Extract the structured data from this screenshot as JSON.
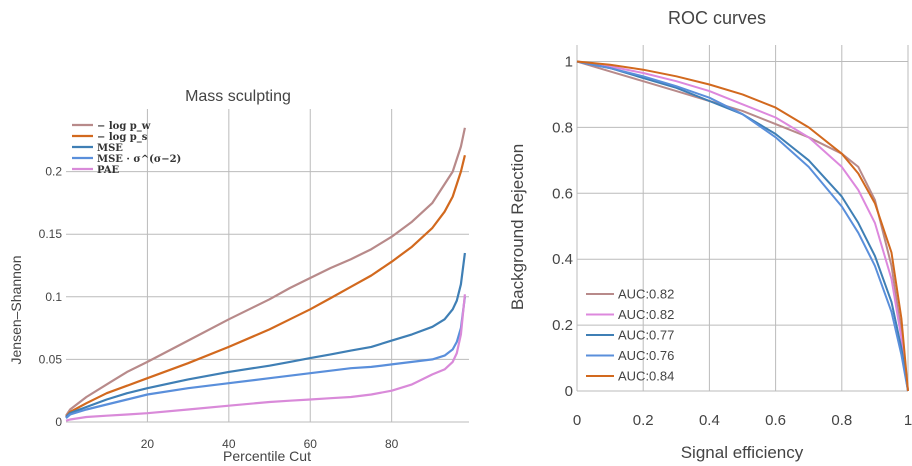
{
  "chart_data": [
    {
      "type": "line",
      "title": "Mass sculpting",
      "xlabel": "Percentile Cut",
      "ylabel": "Jensen–Shannon",
      "xlim": [
        0,
        99
      ],
      "ylim": [
        0,
        0.25
      ],
      "xticks": [
        20,
        40,
        60,
        80
      ],
      "xtick_labels": [
        "20",
        "40",
        "60",
        "80"
      ],
      "yticks": [
        0,
        0.05,
        0.1,
        0.15,
        0.2
      ],
      "ytick_labels": [
        "0",
        "0.05",
        "0.1",
        "0.15",
        "0.2"
      ],
      "grid": true,
      "legend_position": "top-left",
      "series": [
        {
          "name": "− log p_w",
          "color": "#b88a8a",
          "x": [
            0,
            1,
            5,
            10,
            15,
            20,
            30,
            40,
            50,
            55,
            60,
            65,
            70,
            75,
            80,
            85,
            90,
            93,
            95,
            97,
            98
          ],
          "y": [
            0.005,
            0.01,
            0.02,
            0.03,
            0.04,
            0.048,
            0.065,
            0.082,
            0.098,
            0.107,
            0.115,
            0.123,
            0.13,
            0.138,
            0.148,
            0.16,
            0.175,
            0.19,
            0.2,
            0.22,
            0.235
          ]
        },
        {
          "name": "− log p_s",
          "color": "#d2691e",
          "x": [
            0,
            1,
            5,
            10,
            15,
            20,
            30,
            40,
            50,
            55,
            60,
            65,
            70,
            75,
            80,
            85,
            90,
            93,
            95,
            97,
            98
          ],
          "y": [
            0.004,
            0.008,
            0.015,
            0.023,
            0.029,
            0.035,
            0.047,
            0.06,
            0.074,
            0.082,
            0.09,
            0.099,
            0.108,
            0.117,
            0.128,
            0.14,
            0.155,
            0.168,
            0.18,
            0.2,
            0.213
          ]
        },
        {
          "name": "MSE",
          "color": "#3f7fb5",
          "x": [
            0,
            1,
            5,
            10,
            15,
            20,
            30,
            40,
            50,
            55,
            60,
            65,
            70,
            75,
            80,
            85,
            90,
            93,
            95,
            96,
            97,
            98
          ],
          "y": [
            0.004,
            0.007,
            0.012,
            0.018,
            0.023,
            0.027,
            0.034,
            0.04,
            0.045,
            0.048,
            0.051,
            0.054,
            0.057,
            0.06,
            0.065,
            0.07,
            0.076,
            0.082,
            0.09,
            0.097,
            0.11,
            0.135
          ]
        },
        {
          "name": "MSE · σ^(σ−2)",
          "color": "#5a8fdb",
          "x": [
            0,
            1,
            5,
            10,
            15,
            20,
            30,
            40,
            50,
            55,
            60,
            65,
            70,
            75,
            80,
            85,
            90,
            93,
            95,
            96,
            97,
            98
          ],
          "y": [
            0.003,
            0.006,
            0.01,
            0.014,
            0.018,
            0.022,
            0.027,
            0.031,
            0.035,
            0.037,
            0.039,
            0.041,
            0.043,
            0.044,
            0.046,
            0.048,
            0.05,
            0.053,
            0.058,
            0.064,
            0.075,
            0.1
          ]
        },
        {
          "name": "PAE",
          "color": "#d98ad9",
          "x": [
            0,
            1,
            5,
            10,
            15,
            20,
            30,
            40,
            50,
            55,
            60,
            65,
            70,
            75,
            80,
            85,
            90,
            93,
            95,
            96,
            97,
            98
          ],
          "y": [
            0.001,
            0.002,
            0.004,
            0.005,
            0.006,
            0.007,
            0.01,
            0.013,
            0.016,
            0.017,
            0.018,
            0.019,
            0.02,
            0.022,
            0.025,
            0.03,
            0.038,
            0.042,
            0.048,
            0.055,
            0.07,
            0.102
          ]
        }
      ]
    },
    {
      "type": "line",
      "title": "ROC curves",
      "xlabel": "Signal efficiency",
      "ylabel": "Background Rejection",
      "xlim": [
        0,
        1
      ],
      "ylim": [
        0,
        1.05
      ],
      "xticks": [
        0,
        0.2,
        0.4,
        0.6,
        0.8,
        1
      ],
      "xtick_labels": [
        "0",
        "0.2",
        "0.4",
        "0.6",
        "0.8",
        "1"
      ],
      "yticks": [
        0,
        0.2,
        0.4,
        0.6,
        0.8,
        1
      ],
      "ytick_labels": [
        "0",
        "0.2",
        "0.4",
        "0.6",
        "0.8",
        "1"
      ],
      "grid": true,
      "legend_position": "bottom-left",
      "series": [
        {
          "name": "AUC:0.82",
          "color": "#b88a8a",
          "x": [
            0,
            0.1,
            0.2,
            0.3,
            0.4,
            0.5,
            0.6,
            0.7,
            0.8,
            0.85,
            0.9,
            0.95,
            0.98,
            1
          ],
          "y": [
            1,
            0.97,
            0.94,
            0.91,
            0.88,
            0.85,
            0.81,
            0.77,
            0.72,
            0.68,
            0.58,
            0.38,
            0.18,
            0
          ]
        },
        {
          "name": "AUC:0.82",
          "color": "#dd88dd",
          "x": [
            0,
            0.1,
            0.2,
            0.3,
            0.4,
            0.5,
            0.6,
            0.7,
            0.8,
            0.85,
            0.9,
            0.95,
            0.98,
            1
          ],
          "y": [
            1,
            0.985,
            0.965,
            0.94,
            0.91,
            0.87,
            0.83,
            0.77,
            0.68,
            0.61,
            0.51,
            0.34,
            0.16,
            0
          ]
        },
        {
          "name": "AUC:0.77",
          "color": "#3f7fb5",
          "x": [
            0,
            0.1,
            0.2,
            0.3,
            0.4,
            0.5,
            0.6,
            0.7,
            0.8,
            0.85,
            0.9,
            0.95,
            0.98,
            1
          ],
          "y": [
            1,
            0.98,
            0.95,
            0.92,
            0.88,
            0.84,
            0.78,
            0.7,
            0.59,
            0.51,
            0.41,
            0.27,
            0.13,
            0
          ]
        },
        {
          "name": "AUC:0.76",
          "color": "#5a8fdb",
          "x": [
            0,
            0.1,
            0.2,
            0.3,
            0.4,
            0.5,
            0.6,
            0.7,
            0.8,
            0.85,
            0.9,
            0.95,
            0.98,
            1
          ],
          "y": [
            1,
            0.98,
            0.955,
            0.925,
            0.89,
            0.84,
            0.77,
            0.68,
            0.56,
            0.48,
            0.38,
            0.24,
            0.11,
            0
          ]
        },
        {
          "name": "AUC:0.84",
          "color": "#d2691e",
          "x": [
            0,
            0.1,
            0.2,
            0.3,
            0.4,
            0.5,
            0.6,
            0.7,
            0.8,
            0.85,
            0.9,
            0.95,
            0.98,
            1
          ],
          "y": [
            1,
            0.99,
            0.975,
            0.955,
            0.93,
            0.9,
            0.86,
            0.8,
            0.72,
            0.66,
            0.57,
            0.42,
            0.22,
            0
          ]
        }
      ]
    }
  ]
}
